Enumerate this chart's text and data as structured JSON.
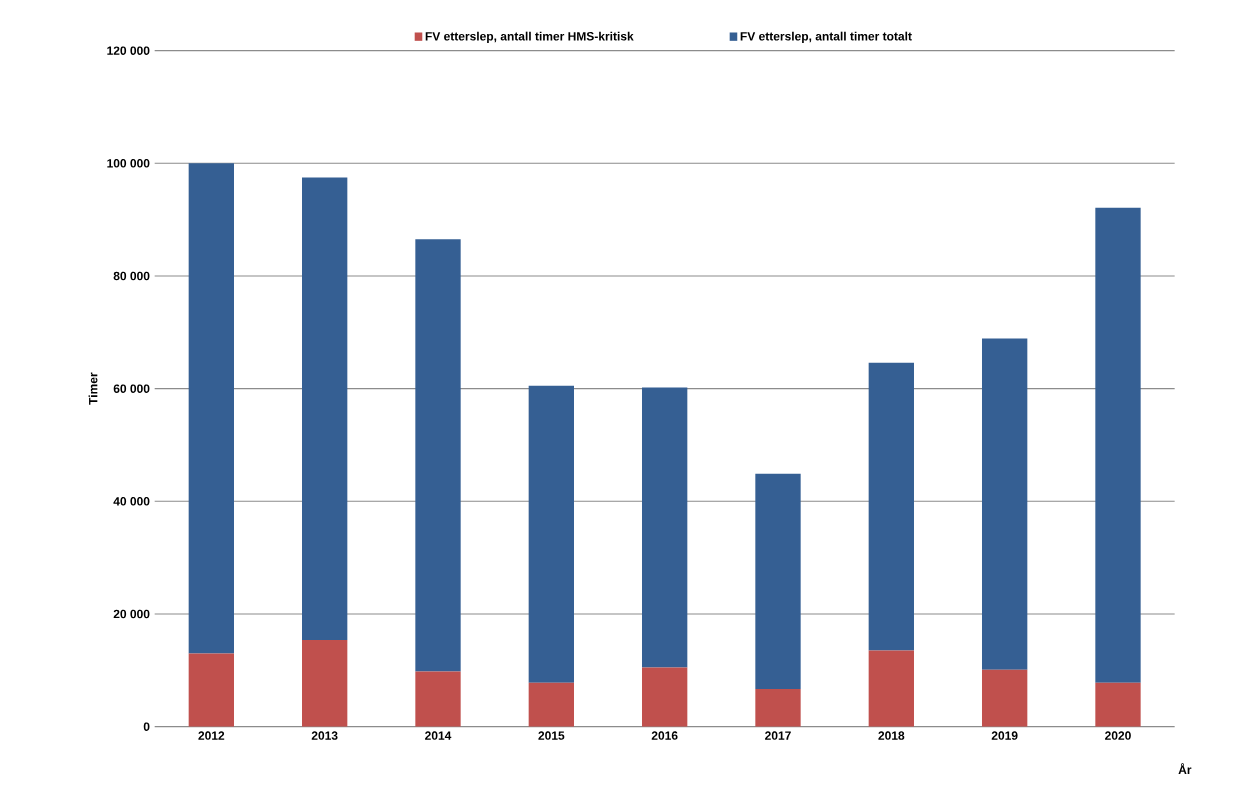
{
  "chart_data": {
    "type": "bar",
    "stacked": true,
    "ylabel": "Timer",
    "xlabel": "År",
    "categories": [
      "2012",
      "2013",
      "2014",
      "2015",
      "2016",
      "2017",
      "2018",
      "2019",
      "2020"
    ],
    "series": [
      {
        "name": "FV etterslep, antall timer HMS-kritisk",
        "color": "#c0504d",
        "values": [
          13000,
          15400,
          9800,
          7800,
          10500,
          6700,
          13500,
          10100,
          7800
        ]
      },
      {
        "name": "FV etterslep, antall timer totalt",
        "color": "#355f93",
        "values": [
          87000,
          82100,
          76700,
          52700,
          49700,
          38200,
          51100,
          58800,
          84300
        ]
      }
    ],
    "ylim": [
      0,
      120000
    ],
    "yticks": [
      {
        "value": 0,
        "label": "0"
      },
      {
        "value": 20000,
        "label": "20 000"
      },
      {
        "value": 40000,
        "label": "40 000"
      },
      {
        "value": 60000,
        "label": "60 000"
      },
      {
        "value": 80000,
        "label": "80 000"
      },
      {
        "value": 100000,
        "label": "100 000"
      },
      {
        "value": 120000,
        "label": "120 000"
      }
    ],
    "grid": "y",
    "legend": "top"
  }
}
